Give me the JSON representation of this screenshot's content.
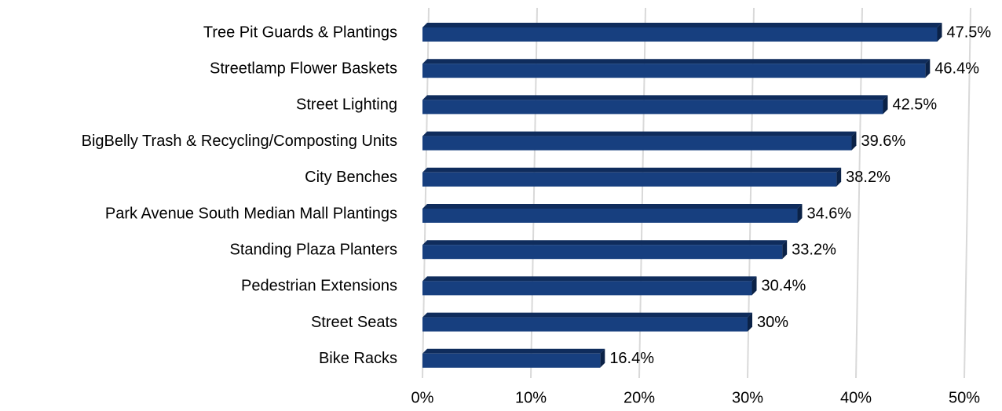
{
  "chart_data": {
    "type": "bar",
    "orientation": "horizontal",
    "categories": [
      "Tree Pit Guards & Plantings",
      "Streetlamp Flower Baskets",
      "Street Lighting",
      "BigBelly Trash & Recycling/Composting Units",
      "City Benches",
      "Park Avenue South Median Mall Plantings",
      "Standing Plaza Planters",
      "Pedestrian Extensions",
      "Street Seats",
      "Bike Racks"
    ],
    "values": [
      47.5,
      46.4,
      42.5,
      39.6,
      38.2,
      34.6,
      33.2,
      30.4,
      30,
      16.4
    ],
    "value_labels": [
      "47.5%",
      "46.4%",
      "42.5%",
      "39.6%",
      "38.2%",
      "34.6%",
      "33.2%",
      "30.4%",
      "30%",
      "16.4%"
    ],
    "xlim": [
      0,
      50
    ],
    "xticks": [
      0,
      10,
      20,
      30,
      40,
      50
    ],
    "xtick_labels": [
      "0%",
      "10%",
      "20%",
      "30%",
      "40%",
      "50%"
    ],
    "grid": true,
    "legend": "none",
    "bar_color": "#173f7f",
    "bar_top_color": "#0f2c5c",
    "bar_side_color": "#0b2247"
  }
}
